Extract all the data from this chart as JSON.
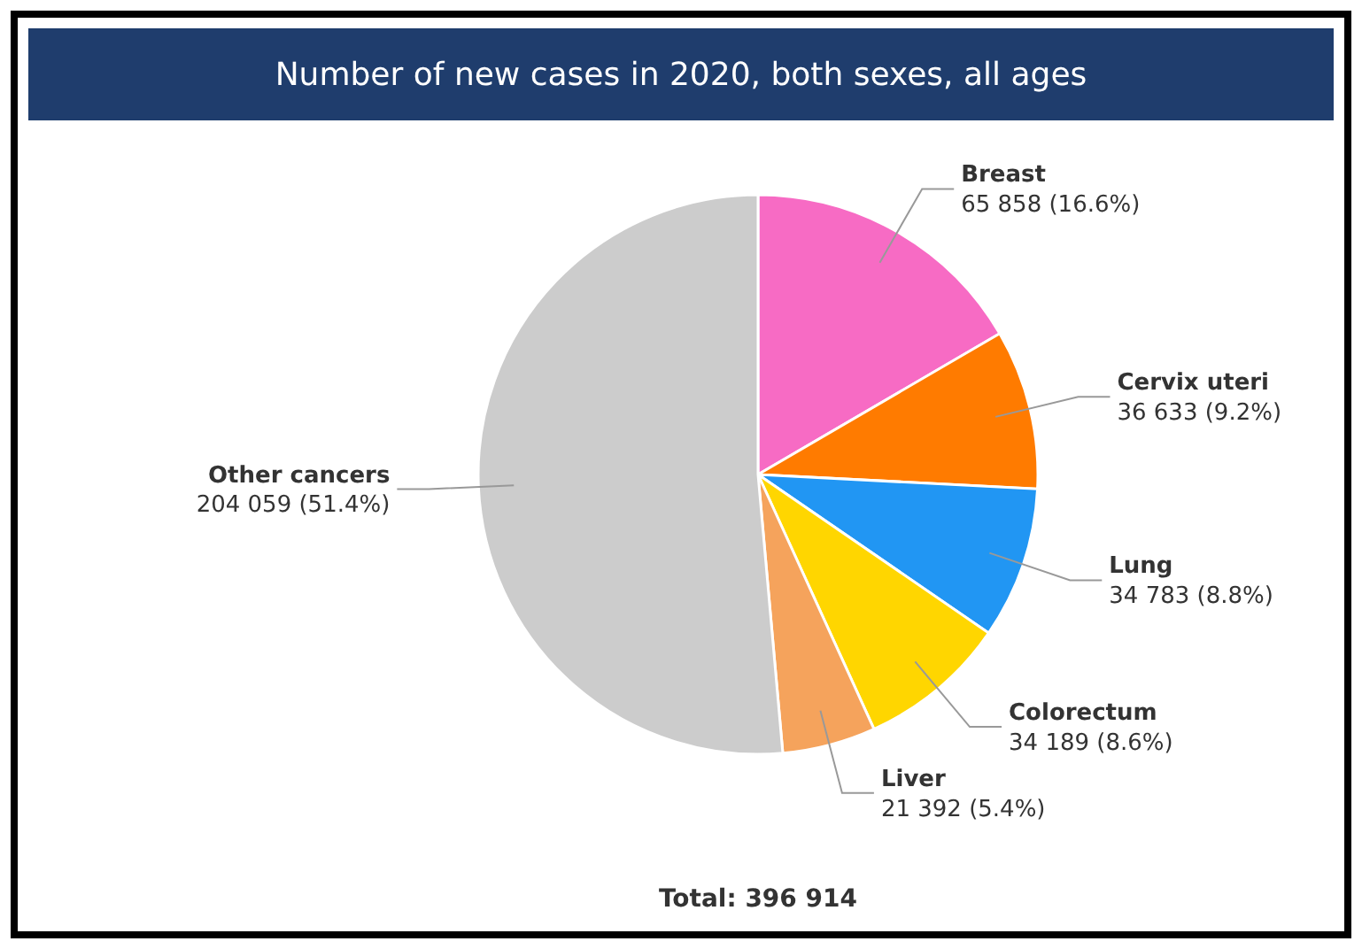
{
  "chart_data": {
    "type": "pie",
    "title": "Number of new cases in 2020, both sexes, all ages",
    "categories": [
      "Breast",
      "Cervix uteri",
      "Lung",
      "Colorectum",
      "Liver",
      "Other cancers"
    ],
    "values": [
      65858,
      36633,
      34783,
      34189,
      21392,
      204059
    ],
    "value_labels": [
      "65 858 (16.6%)",
      "36 633 (9.2%)",
      "34 783 (8.8%)",
      "34 189 (8.6%)",
      "21 392 (5.4%)",
      "204 059 (51.4%)"
    ],
    "colors": [
      "#f76bc4",
      "#ff7b00",
      "#2196f3",
      "#ffd600",
      "#f5a35c",
      "#cccccc"
    ],
    "annotations": [
      "Total: 396 914"
    ],
    "legend": false
  }
}
